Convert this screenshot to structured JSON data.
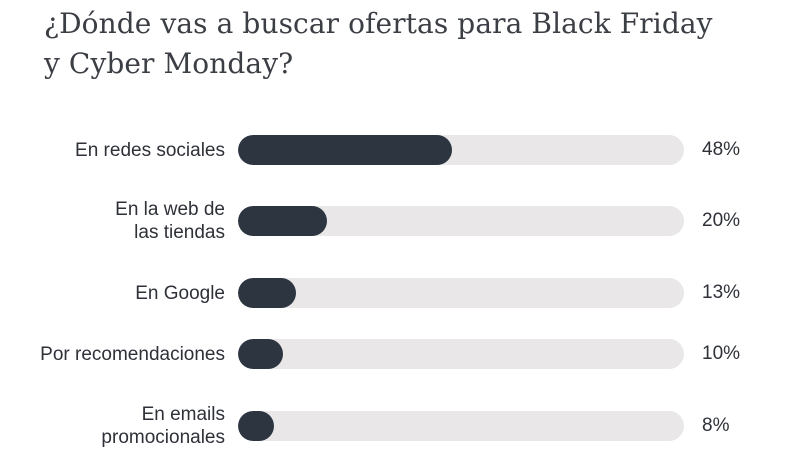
{
  "title_lines": [
    "¿Dónde vas a buscar ofertas para Black Friday",
    "y Cyber Monday?"
  ],
  "chart_data": {
    "type": "bar",
    "orientation": "horizontal",
    "title": "¿Dónde vas a buscar ofertas para Black Friday y Cyber Monday?",
    "categories": [
      "En redes sociales",
      "En la web de\nlas tiendas",
      "En Google",
      "Por recomendaciones",
      "En emails\npromocionales"
    ],
    "values": [
      48,
      20,
      13,
      10,
      8
    ],
    "value_labels": [
      "48%",
      "20%",
      "13%",
      "10%",
      "8%"
    ],
    "unit": "%",
    "xlim": [
      0,
      100
    ],
    "grid": false,
    "legend": "none",
    "colors": {
      "bar": "#2c3540",
      "track": "#e9e7e7",
      "text": "#2e3138",
      "title": "#3b3e44"
    }
  }
}
